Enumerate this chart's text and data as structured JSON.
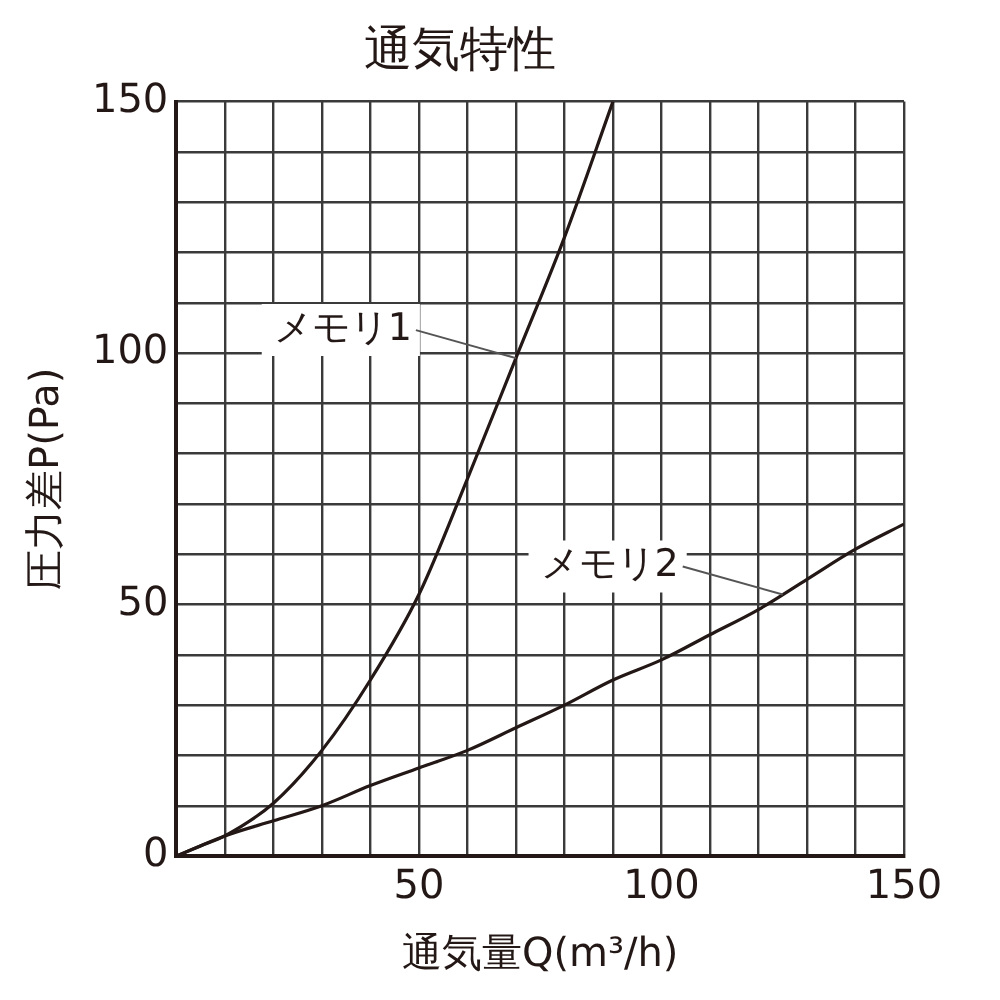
{
  "chart_data": {
    "type": "line",
    "title": "通気特性",
    "xlabel": "通気量Q(m³/h)",
    "ylabel": "圧力差P(Pa)",
    "xlim": [
      0,
      150
    ],
    "xticks": [
      {
        "value": 0,
        "label": null
      },
      {
        "value": 10,
        "label": null
      },
      {
        "value": 20,
        "label": null
      },
      {
        "value": 30,
        "label": null
      },
      {
        "value": 40,
        "label": null
      },
      50,
      {
        "value": 60,
        "label": null
      },
      {
        "value": 70,
        "label": null
      },
      {
        "value": 80,
        "label": null
      },
      {
        "value": 90,
        "label": null
      },
      100,
      {
        "value": 110,
        "label": null
      },
      {
        "value": 120,
        "label": null
      },
      {
        "value": 130,
        "label": null
      },
      {
        "value": 140,
        "label": null
      },
      150
    ],
    "ylim": [
      0,
      150
    ],
    "yticks": [
      0,
      {
        "value": 10,
        "label": null
      },
      {
        "value": 20,
        "label": null
      },
      {
        "value": 30,
        "label": null
      },
      {
        "value": 40,
        "label": null
      },
      50,
      {
        "value": 60,
        "label": null
      },
      {
        "value": 70,
        "label": null
      },
      {
        "value": 80,
        "label": null
      },
      {
        "value": 90,
        "label": null
      },
      100,
      {
        "value": 110,
        "label": null
      },
      {
        "value": 120,
        "label": null
      },
      {
        "value": 130,
        "label": null
      },
      {
        "value": 140,
        "label": null
      },
      150
    ],
    "grid": true,
    "marker": "none",
    "line_style": "solid",
    "series": [
      {
        "color": "#231815",
        "x": [
          0,
          5,
          10,
          20,
          30,
          40,
          50,
          60,
          70,
          80,
          90
        ],
        "values": [
          0,
          2,
          4,
          10.5,
          21,
          35,
          52,
          75,
          99,
          123,
          150
        ]
      },
      {
        "color": "#231815",
        "x": [
          0,
          10,
          20,
          30,
          40,
          50,
          60,
          70,
          80,
          90,
          100,
          110,
          120,
          130,
          140,
          150
        ],
        "values": [
          0,
          4,
          7,
          10,
          14,
          17.5,
          21,
          25.5,
          30,
          35,
          39,
          44,
          49,
          55,
          61,
          66
        ]
      }
    ],
    "annotations": [
      {
        "text": "メモリ1",
        "x": 70,
        "y": 99
      },
      {
        "text": "メモリ2",
        "x": 125,
        "y": 52
      }
    ]
  }
}
